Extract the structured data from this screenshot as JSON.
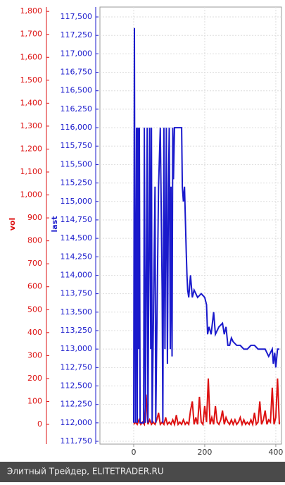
{
  "chart_data": {
    "type": "line",
    "ylabel": "last",
    "y2label": "vol",
    "xlim": [
      -95,
      416
    ],
    "xticks": [
      0,
      200,
      400
    ],
    "ylim": [
      111712,
      117634
    ],
    "yticks": [
      {
        "value": 111750,
        "label": "111,750"
      },
      {
        "value": 112000,
        "label": "112,000"
      },
      {
        "value": 112250,
        "label": "112,250"
      },
      {
        "value": 112500,
        "label": "112,500"
      },
      {
        "value": 112750,
        "label": "112,750"
      },
      {
        "value": 113000,
        "label": "113,000"
      },
      {
        "value": 113250,
        "label": "113,250"
      },
      {
        "value": 113500,
        "label": "113,500"
      },
      {
        "value": 113750,
        "label": "113,750"
      },
      {
        "value": 114000,
        "label": "114,000"
      },
      {
        "value": 114250,
        "label": "114,250"
      },
      {
        "value": 114500,
        "label": "114,500"
      },
      {
        "value": 114750,
        "label": "114,750"
      },
      {
        "value": 115000,
        "label": "115,000"
      },
      {
        "value": 115250,
        "label": "115,250"
      },
      {
        "value": 115500,
        "label": "115,500"
      },
      {
        "value": 115750,
        "label": "115,750"
      },
      {
        "value": 116000,
        "label": "116,000"
      },
      {
        "value": 116250,
        "label": "116,250"
      },
      {
        "value": 116500,
        "label": "116,500"
      },
      {
        "value": 116750,
        "label": "116,750"
      },
      {
        "value": 117000,
        "label": "117,000"
      },
      {
        "value": 117250,
        "label": "117,250"
      },
      {
        "value": 117500,
        "label": "117,500"
      }
    ],
    "y2lim": [
      -86,
      1819
    ],
    "y2ticks": [
      0,
      100,
      200,
      300,
      400,
      500,
      600,
      700,
      800,
      900,
      {
        "value": 1000,
        "label": "1,000"
      },
      {
        "value": 1100,
        "label": "1,100"
      },
      {
        "value": 1200,
        "label": "1,200"
      },
      {
        "value": 1300,
        "label": "1,300"
      },
      {
        "value": 1400,
        "label": "1,400"
      },
      {
        "value": 1500,
        "label": "1,500"
      },
      {
        "value": 1600,
        "label": "1,600"
      },
      {
        "value": 1700,
        "label": "1,700"
      },
      {
        "value": 1800,
        "label": "1,800"
      }
    ],
    "grid": true,
    "series": [
      {
        "name": "last",
        "color": "#1a1acc",
        "x": [
          0,
          2,
          3,
          5,
          8,
          10,
          12,
          14,
          16,
          18,
          28,
          30,
          33,
          38,
          40,
          45,
          48,
          50,
          52,
          60,
          62,
          70,
          75,
          80,
          82,
          85,
          88,
          92,
          95,
          98,
          100,
          103,
          105,
          108,
          110,
          112,
          115,
          120,
          135,
          137,
          140,
          143,
          148,
          150,
          152,
          155,
          160,
          165,
          170,
          180,
          190,
          200,
          205,
          208,
          212,
          218,
          225,
          230,
          240,
          250,
          255,
          260,
          265,
          270,
          275,
          280,
          290,
          300,
          310,
          320,
          330,
          340,
          350,
          360,
          370,
          380,
          385,
          390,
          393,
          397,
          400,
          405,
          410
        ],
        "values": [
          112000,
          117350,
          115000,
          112000,
          116000,
          112000,
          116000,
          113000,
          116000,
          112000,
          112000,
          116000,
          112000,
          116000,
          112000,
          116000,
          113000,
          116000,
          112000,
          115200,
          112000,
          115200,
          116000,
          113800,
          112000,
          116000,
          113000,
          116000,
          112800,
          115200,
          116000,
          113000,
          115200,
          112900,
          116000,
          115300,
          116000,
          116000,
          116000,
          115200,
          115000,
          115200,
          114300,
          114000,
          113800,
          113700,
          114000,
          113700,
          113800,
          113700,
          113750,
          113700,
          113600,
          113200,
          113300,
          113200,
          113500,
          113200,
          113300,
          113350,
          113200,
          113300,
          113050,
          113050,
          113150,
          113100,
          113050,
          113050,
          113000,
          113000,
          113050,
          113050,
          113000,
          113000,
          113000,
          112900,
          112950,
          113000,
          112800,
          112950,
          112750,
          113000,
          113000
        ]
      },
      {
        "name": "vol",
        "color": "#dd1111",
        "axis": "y2",
        "x": [
          0,
          5,
          10,
          15,
          20,
          25,
          30,
          35,
          40,
          45,
          50,
          55,
          60,
          65,
          70,
          75,
          80,
          85,
          90,
          95,
          100,
          105,
          110,
          115,
          120,
          125,
          130,
          135,
          140,
          145,
          150,
          155,
          160,
          165,
          170,
          175,
          180,
          185,
          190,
          195,
          200,
          205,
          210,
          215,
          220,
          225,
          230,
          235,
          240,
          245,
          250,
          255,
          260,
          265,
          270,
          275,
          280,
          285,
          290,
          295,
          300,
          305,
          310,
          315,
          320,
          325,
          330,
          335,
          340,
          345,
          350,
          355,
          360,
          365,
          370,
          375,
          380,
          385,
          390,
          395,
          400,
          405,
          410
        ],
        "values": [
          0,
          10,
          0,
          20,
          0,
          10,
          0,
          130,
          0,
          20,
          0,
          10,
          0,
          20,
          50,
          0,
          10,
          0,
          30,
          0,
          10,
          0,
          20,
          0,
          40,
          0,
          10,
          0,
          20,
          0,
          10,
          0,
          60,
          100,
          0,
          30,
          0,
          120,
          10,
          0,
          80,
          10,
          200,
          0,
          30,
          0,
          80,
          10,
          0,
          20,
          60,
          0,
          30,
          10,
          0,
          20,
          0,
          20,
          0,
          10,
          30,
          0,
          20,
          0,
          10,
          0,
          20,
          0,
          50,
          0,
          10,
          100,
          0,
          20,
          60,
          0,
          20,
          10,
          160,
          0,
          30,
          200,
          0
        ]
      }
    ]
  },
  "footer": "Элитный Трейдер, ELITETRADER.RU"
}
